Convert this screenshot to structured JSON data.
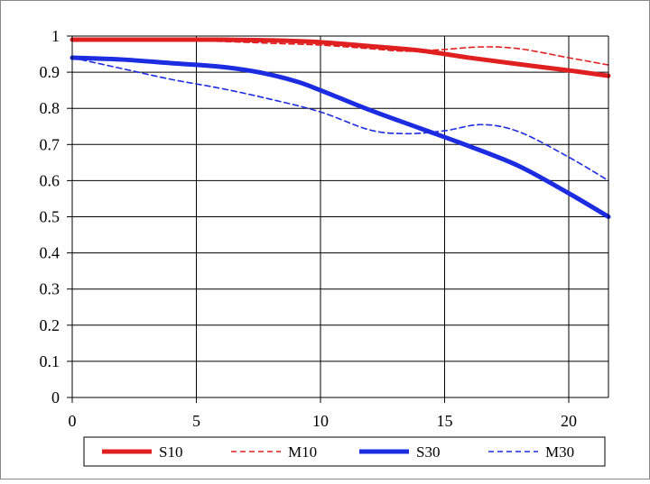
{
  "chart_data": {
    "type": "line",
    "title": "",
    "xlabel": "",
    "ylabel": "",
    "xlim": [
      0,
      21.6
    ],
    "ylim": [
      0,
      1
    ],
    "x_ticks": [
      0,
      5,
      10,
      15,
      20
    ],
    "y_ticks": [
      0,
      0.1,
      0.2,
      0.3,
      0.4,
      0.5,
      0.6,
      0.7,
      0.8,
      0.9,
      1
    ],
    "x_tick_labels": [
      "0",
      "5",
      "10",
      "15",
      "20"
    ],
    "y_tick_labels": [
      "0",
      "0.1",
      "0.2",
      "0.3",
      "0.4",
      "0.5",
      "0.6",
      "0.7",
      "0.8",
      "0.9",
      "1"
    ],
    "grid": "horizontal",
    "legend_position": "bottom",
    "series": [
      {
        "name": "S10",
        "color": "#e02020",
        "style": "solid-thick",
        "points": [
          [
            0,
            0.99
          ],
          [
            2,
            0.99
          ],
          [
            4,
            0.99
          ],
          [
            6,
            0.99
          ],
          [
            8,
            0.988
          ],
          [
            10,
            0.983
          ],
          [
            12,
            0.972
          ],
          [
            14,
            0.96
          ],
          [
            16,
            0.94
          ],
          [
            18,
            0.922
          ],
          [
            20,
            0.905
          ],
          [
            21.6,
            0.89
          ]
        ]
      },
      {
        "name": "M10",
        "color": "#e02020",
        "style": "dashed-thin",
        "points": [
          [
            0,
            0.99
          ],
          [
            2,
            0.99
          ],
          [
            4,
            0.988
          ],
          [
            6,
            0.985
          ],
          [
            8,
            0.98
          ],
          [
            10,
            0.975
          ],
          [
            12,
            0.965
          ],
          [
            13.5,
            0.958
          ],
          [
            15,
            0.963
          ],
          [
            16.5,
            0.97
          ],
          [
            18,
            0.965
          ],
          [
            20,
            0.94
          ],
          [
            21.6,
            0.92
          ]
        ]
      },
      {
        "name": "S30",
        "color": "#1c2ce0",
        "style": "solid-thick",
        "points": [
          [
            0,
            0.94
          ],
          [
            2,
            0.935
          ],
          [
            4,
            0.925
          ],
          [
            6,
            0.915
          ],
          [
            7.5,
            0.9
          ],
          [
            9,
            0.875
          ],
          [
            10,
            0.85
          ],
          [
            12,
            0.795
          ],
          [
            14,
            0.745
          ],
          [
            16,
            0.695
          ],
          [
            18,
            0.64
          ],
          [
            20,
            0.565
          ],
          [
            21.6,
            0.5
          ]
        ]
      },
      {
        "name": "M30",
        "color": "#1c2ce0",
        "style": "dashed-thin",
        "points": [
          [
            0,
            0.94
          ],
          [
            2,
            0.91
          ],
          [
            4,
            0.88
          ],
          [
            6,
            0.855
          ],
          [
            8,
            0.825
          ],
          [
            10,
            0.79
          ],
          [
            12,
            0.74
          ],
          [
            13.5,
            0.73
          ],
          [
            15,
            0.738
          ],
          [
            16.5,
            0.755
          ],
          [
            18,
            0.735
          ],
          [
            20,
            0.665
          ],
          [
            21.6,
            0.6
          ]
        ]
      }
    ]
  }
}
